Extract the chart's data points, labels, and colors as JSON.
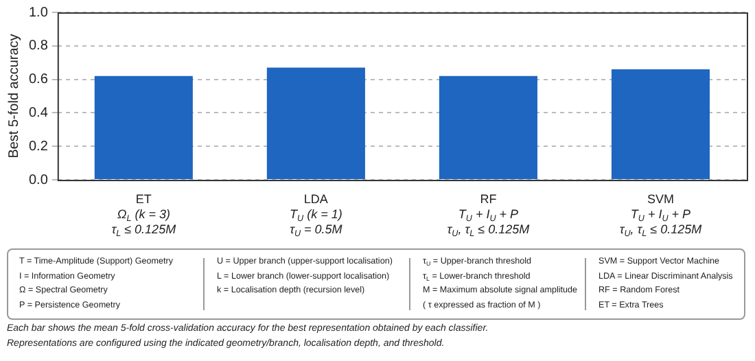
{
  "chart_data": {
    "type": "bar",
    "ylabel": "Best 5-fold accuracy",
    "categories": [
      "ET\nΩ$_{L}$ (k = 3)\nτ$_{L}$ ≤ 0.125M",
      "LDA\nT$_{U}$ (k = 1)\nτ$_{U}$ = 0.5M",
      "RF\nT$_{U}$ + I$_{U}$ + P\nτ$_{U}$, τ$_{L}$ ≤ 0.125M",
      "SVM\nT$_{U}$ + I$_{U}$ + P\nτ$_{U}$, τ$_{L}$ ≤ 0.125M"
    ],
    "values": [
      0.62,
      0.67,
      0.62,
      0.66
    ],
    "color": "#1f66c0",
    "ylim": [
      0,
      1
    ],
    "yticks": [
      {
        "value": 0,
        "label": "0.0"
      },
      {
        "value": 0.2,
        "label": "0.2"
      },
      {
        "value": 0.4,
        "label": "0.4"
      },
      {
        "value": 0.6,
        "label": "0.6"
      },
      {
        "value": 0.8,
        "label": "0.8"
      },
      {
        "value": 1,
        "label": "1.0"
      }
    ],
    "grid": "y",
    "annotations": [
      "T = Time-Amplitude (Support) Geometry",
      "I = Information Geometry",
      "Ω = Spectral Geometry",
      "P = Persistence Geometry",
      "U = Upper branch (upper-support localisation)",
      "L = Lower branch (lower-support localisation)",
      "k = Localisation depth (recursion level)",
      "τ$_{U}$ = Upper-branch threshold",
      "τ$_{L}$ = Lower-branch threshold",
      "M = Maximum absolute signal amplitude",
      "( τ expressed as fraction of M )",
      "SVM = Support Vector Machine",
      "LDA = Linear Discriminant Analysis",
      "RF = Random Forest",
      "ET = Extra Trees",
      "Each bar shows the mean 5-fold cross-validation accuracy for the best representation obtained by each classifier.",
      "Representations are configured using the indicated geometry/branch, localisation depth, and threshold."
    ]
  }
}
